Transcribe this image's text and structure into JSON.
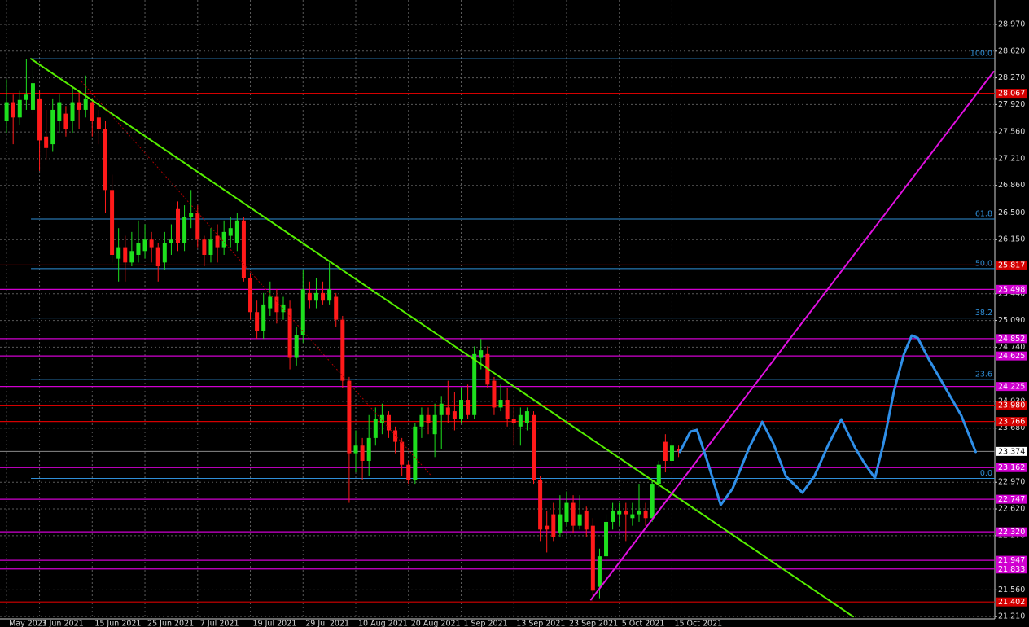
{
  "chart_data": {
    "type": "candlestick",
    "categories": [
      "May 2021",
      null,
      null,
      null,
      null,
      "3 Jun 2021",
      null,
      null,
      null,
      null,
      null,
      null,
      null,
      "15 Jun 2021",
      null,
      null,
      null,
      null,
      null,
      null,
      null,
      "25 Jun 2021",
      null,
      null,
      null,
      null,
      null,
      null,
      null,
      "7 Jul 2021",
      null,
      null,
      null,
      null,
      null,
      null,
      null,
      "19 Jul 2021",
      null,
      null,
      null,
      null,
      null,
      null,
      null,
      "29 Jul 2021",
      null,
      null,
      null,
      null,
      null,
      null,
      null,
      "10 Aug 2021",
      null,
      null,
      null,
      null,
      null,
      null,
      null,
      "20 Aug 2021",
      null,
      null,
      null,
      null,
      null,
      null,
      null,
      "1 Sep 2021",
      null,
      null,
      null,
      null,
      null,
      null,
      null,
      "13 Sep 2021",
      null,
      null,
      null,
      null,
      null,
      null,
      null,
      "23 Sep 2021",
      null,
      null,
      null,
      null,
      null,
      null,
      null,
      "5 Oct 2021",
      null,
      null,
      null,
      null,
      null,
      null,
      null,
      "15 Oct 2021",
      null
    ],
    "candles": [
      [
        27.7,
        28.25,
        27.55,
        27.95
      ],
      [
        27.95,
        28.05,
        27.4,
        27.75
      ],
      [
        27.75,
        28.1,
        27.65,
        27.98
      ],
      [
        27.98,
        28.52,
        27.85,
        28.05
      ],
      [
        27.85,
        28.52,
        27.8,
        28.2
      ],
      [
        28.0,
        28.1,
        27.05,
        27.45
      ],
      [
        27.5,
        27.85,
        27.2,
        27.35
      ],
      [
        27.4,
        28.0,
        27.3,
        27.85
      ],
      [
        27.7,
        28.05,
        27.55,
        27.95
      ],
      [
        27.8,
        27.9,
        27.5,
        27.6
      ],
      [
        27.7,
        28.15,
        27.55,
        27.95
      ],
      [
        27.95,
        28.1,
        27.6,
        27.85
      ],
      [
        27.85,
        28.3,
        27.75,
        28.0
      ],
      [
        27.95,
        28.0,
        27.5,
        27.7
      ],
      [
        27.75,
        27.85,
        27.4,
        27.6
      ],
      [
        27.6,
        27.7,
        26.5,
        26.8
      ],
      [
        26.8,
        27.0,
        25.85,
        25.95
      ],
      [
        25.9,
        26.3,
        25.6,
        26.05
      ],
      [
        26.05,
        26.2,
        25.6,
        25.85
      ],
      [
        25.85,
        26.25,
        25.8,
        26.0
      ],
      [
        25.95,
        26.4,
        25.85,
        26.1
      ],
      [
        26.0,
        26.35,
        25.9,
        26.15
      ],
      [
        26.15,
        26.25,
        25.85,
        26.05
      ],
      [
        26.05,
        26.1,
        25.6,
        25.8
      ],
      [
        25.85,
        26.25,
        25.75,
        26.1
      ],
      [
        26.1,
        26.35,
        25.95,
        26.15
      ],
      [
        26.55,
        26.65,
        26.0,
        26.1
      ],
      [
        26.1,
        26.6,
        26.0,
        26.45
      ],
      [
        26.45,
        26.8,
        26.3,
        26.5
      ],
      [
        26.5,
        26.6,
        26.05,
        26.15
      ],
      [
        26.15,
        26.2,
        25.8,
        25.95
      ],
      [
        25.95,
        26.3,
        25.85,
        26.15
      ],
      [
        26.2,
        26.35,
        25.85,
        26.05
      ],
      [
        26.05,
        26.4,
        25.95,
        26.25
      ],
      [
        26.2,
        26.45,
        26.05,
        26.3
      ],
      [
        26.1,
        26.5,
        26.0,
        26.4
      ],
      [
        26.4,
        26.45,
        25.6,
        25.65
      ],
      [
        25.65,
        25.7,
        25.1,
        25.2
      ],
      [
        25.2,
        25.35,
        24.85,
        24.95
      ],
      [
        24.95,
        25.45,
        24.85,
        25.3
      ],
      [
        25.25,
        25.6,
        25.15,
        25.4
      ],
      [
        25.4,
        25.5,
        25.05,
        25.2
      ],
      [
        25.2,
        25.4,
        25.1,
        25.3
      ],
      [
        25.25,
        25.35,
        24.45,
        24.6
      ],
      [
        24.6,
        25.0,
        24.5,
        24.9
      ],
      [
        24.9,
        25.75,
        24.8,
        25.5
      ],
      [
        25.45,
        25.6,
        25.25,
        25.35
      ],
      [
        25.35,
        25.65,
        25.25,
        25.45
      ],
      [
        25.45,
        25.6,
        25.3,
        25.35
      ],
      [
        25.35,
        25.85,
        25.3,
        25.5
      ],
      [
        25.4,
        25.45,
        25.0,
        25.1
      ],
      [
        25.1,
        25.15,
        24.2,
        24.3
      ],
      [
        24.3,
        24.35,
        22.7,
        23.35
      ],
      [
        23.35,
        23.65,
        23.1,
        23.45
      ],
      [
        23.45,
        23.55,
        23.0,
        23.25
      ],
      [
        23.25,
        23.85,
        23.05,
        23.55
      ],
      [
        23.55,
        23.95,
        23.45,
        23.8
      ],
      [
        23.75,
        24.0,
        23.6,
        23.85
      ],
      [
        23.85,
        23.9,
        23.55,
        23.65
      ],
      [
        23.65,
        23.7,
        23.35,
        23.5
      ],
      [
        23.5,
        23.55,
        23.05,
        23.2
      ],
      [
        23.2,
        23.25,
        22.95,
        23.0
      ],
      [
        23.0,
        23.75,
        22.95,
        23.7
      ],
      [
        23.7,
        23.95,
        23.55,
        23.85
      ],
      [
        23.85,
        23.95,
        23.6,
        23.75
      ],
      [
        23.6,
        24.0,
        23.3,
        23.85
      ],
      [
        23.85,
        24.1,
        23.4,
        24.0
      ],
      [
        23.95,
        24.3,
        23.75,
        23.85
      ],
      [
        23.9,
        24.15,
        23.65,
        23.8
      ],
      [
        23.8,
        24.2,
        23.75,
        24.05
      ],
      [
        24.05,
        24.25,
        23.8,
        23.85
      ],
      [
        23.85,
        24.75,
        23.8,
        24.65
      ],
      [
        24.6,
        24.85,
        24.45,
        24.7
      ],
      [
        24.65,
        24.75,
        24.2,
        24.25
      ],
      [
        24.3,
        24.35,
        23.85,
        23.95
      ],
      [
        23.95,
        24.25,
        23.9,
        24.05
      ],
      [
        24.05,
        24.2,
        23.7,
        23.8
      ],
      [
        23.8,
        23.95,
        23.45,
        23.75
      ],
      [
        23.7,
        23.95,
        23.45,
        23.85
      ],
      [
        23.75,
        23.95,
        23.65,
        23.9
      ],
      [
        23.85,
        23.9,
        22.95,
        23.0
      ],
      [
        23.0,
        23.05,
        22.2,
        22.35
      ],
      [
        22.4,
        22.6,
        22.05,
        22.35
      ],
      [
        22.55,
        22.7,
        22.2,
        22.25
      ],
      [
        22.3,
        22.8,
        22.25,
        22.55
      ],
      [
        22.45,
        22.85,
        22.4,
        22.7
      ],
      [
        22.7,
        22.8,
        22.3,
        22.4
      ],
      [
        22.4,
        22.8,
        22.35,
        22.55
      ],
      [
        22.6,
        22.65,
        22.25,
        22.35
      ],
      [
        22.4,
        22.5,
        21.4,
        21.55
      ],
      [
        21.6,
        22.1,
        21.45,
        22.0
      ],
      [
        22.0,
        22.55,
        21.9,
        22.45
      ],
      [
        22.45,
        22.7,
        22.35,
        22.6
      ],
      [
        22.55,
        22.7,
        22.4,
        22.6
      ],
      [
        22.6,
        22.7,
        22.2,
        22.55
      ],
      [
        22.5,
        22.7,
        22.4,
        22.55
      ],
      [
        22.55,
        22.95,
        22.45,
        22.6
      ],
      [
        22.6,
        22.7,
        22.4,
        22.5
      ],
      [
        22.5,
        23.0,
        22.45,
        22.95
      ],
      [
        22.95,
        23.25,
        22.9,
        23.2
      ],
      [
        23.5,
        23.6,
        23.1,
        23.25
      ],
      [
        23.25,
        23.55,
        23.2,
        23.45
      ],
      [
        23.4,
        23.45,
        23.3,
        23.374
      ]
    ],
    "up_color": "#1ee01e",
    "down_color": "#ff1a1a",
    "xlim": [
      -1,
      150
    ],
    "ylim": [
      21.073,
      29.29
    ],
    "yticks": [
      {
        "value": 28.97,
        "label": "28.970"
      },
      {
        "value": 28.62,
        "label": "28.620"
      },
      {
        "value": 28.27,
        "label": "28.270"
      },
      {
        "value": 27.92,
        "label": "27.920"
      },
      {
        "value": 27.56,
        "label": "27.560"
      },
      {
        "value": 27.21,
        "label": "27.210"
      },
      {
        "value": 26.86,
        "label": "26.860"
      },
      {
        "value": 26.5,
        "label": "26.500"
      },
      {
        "value": 26.15,
        "label": "26.150"
      },
      {
        "value": 25.44,
        "label": "25.440"
      },
      {
        "value": 25.09,
        "label": "25.090"
      },
      {
        "value": 24.74,
        "label": "24.740"
      },
      {
        "value": 24.03,
        "label": "24.030"
      },
      {
        "value": 23.68,
        "label": "23.680"
      },
      {
        "value": 22.97,
        "label": "22.970"
      },
      {
        "value": 22.62,
        "label": "22.620"
      },
      {
        "value": 22.27,
        "label": "22.270"
      },
      {
        "value": 21.56,
        "label": "21.560"
      },
      {
        "value": 21.21,
        "label": "21.210"
      }
    ],
    "grid": true,
    "levels": [
      {
        "price": 28.067,
        "color": "#d40000"
      },
      {
        "price": 25.817,
        "color": "#d40000"
      },
      {
        "price": 25.498,
        "color": "#d000d0"
      },
      {
        "price": 24.852,
        "color": "#d000d0"
      },
      {
        "price": 24.625,
        "color": "#d000d0"
      },
      {
        "price": 24.225,
        "color": "#d000d0"
      },
      {
        "price": 23.98,
        "label": "23.980",
        "color": "#d40000"
      },
      {
        "price": 23.766,
        "color": "#d40000"
      },
      {
        "price": 23.162,
        "color": "#d000d0"
      },
      {
        "price": 22.747,
        "color": "#d000d0"
      },
      {
        "price": 22.32,
        "label": "22.320",
        "color": "#d000d0"
      },
      {
        "price": 21.947,
        "color": "#d000d0"
      },
      {
        "price": 21.833,
        "color": "#d000d0"
      },
      {
        "price": 21.402,
        "color": "#d40000"
      }
    ],
    "current_price": 23.374,
    "fibonacci": {
      "high": 28.52,
      "low": 23.02,
      "start": 3.7,
      "color": "#2f8fd8",
      "levels": [
        {
          "value": 100,
          "label": "100.0"
        },
        61.8,
        {
          "value": 50,
          "label": "50.0"
        },
        38.2,
        23.6,
        {
          "value": 0,
          "label": "0.0"
        }
      ]
    },
    "drawings": [
      {
        "kind": "trendline",
        "color": "#55ee00",
        "width": 2,
        "x": [
          3.7,
          128.5
        ],
        "y": [
          28.52,
          21.21
        ]
      },
      {
        "kind": "trendline",
        "color": "#e010e0",
        "width": 2,
        "x": [
          88.7,
          149.8
        ],
        "y": [
          21.43,
          28.35
        ]
      },
      {
        "kind": "dotted",
        "color": "#b00000",
        "width": 1,
        "x": [
          11.4,
          64.5
        ],
        "y": [
          28.22,
          23.05
        ]
      },
      {
        "kind": "path",
        "color": "#2f8fe8",
        "width": 3,
        "x": [
          102.2,
          103.8,
          104.8,
          106.5,
          108.4,
          110.2,
          112.7,
          114.7,
          116.4,
          118.3,
          120.8,
          122.6,
          124.8,
          126.7,
          128.8,
          130.3,
          131.8,
          133.1,
          134.7,
          136.2,
          137.4,
          138.3,
          139.9,
          142.4,
          144.9,
          147.1
        ],
        "y": [
          23.367,
          23.634,
          23.655,
          23.207,
          22.673,
          22.887,
          23.42,
          23.762,
          23.474,
          23.047,
          22.834,
          23.047,
          23.474,
          23.794,
          23.42,
          23.207,
          23.026,
          23.474,
          24.167,
          24.648,
          24.893,
          24.861,
          24.594,
          24.221,
          23.847,
          23.367
        ]
      }
    ]
  }
}
